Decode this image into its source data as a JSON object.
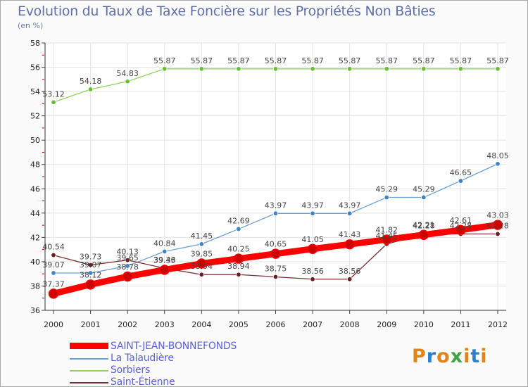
{
  "title": "Evolution du Taux de Taxe Foncière sur les Propriétés Non Bâties",
  "subtitle": "(en %)",
  "logo_text": "Proxiti",
  "colors": {
    "background": "#fbfbfb",
    "title": "#5f6fa8",
    "legend_text": "#5a62d8"
  },
  "chart_data": {
    "type": "line",
    "x": [
      "2000",
      "2001",
      "2002",
      "2003",
      "2004",
      "2005",
      "2006",
      "2007",
      "2008",
      "2009",
      "2010",
      "2011",
      "2012"
    ],
    "ylim": [
      36,
      58
    ],
    "yticks": [
      "36",
      "38",
      "40",
      "42",
      "44",
      "46",
      "48",
      "50",
      "52",
      "54",
      "56",
      "58"
    ],
    "grid": true,
    "legend_position": "bottom-left",
    "series": [
      {
        "name": "SAINT-JEAN-BONNEFONDS",
        "color": "#ff0000",
        "marker": "#cc0000",
        "values": [
          37.37,
          38.12,
          38.78,
          39.33,
          39.85,
          40.25,
          40.65,
          41.05,
          41.43,
          41.82,
          42.21,
          42.61,
          43.03
        ],
        "labels": [
          "37.37",
          "38.12",
          "38.78",
          "39.33",
          "39.85",
          "40.25",
          "40.65",
          "41.05",
          "41.43",
          "41.82",
          "42.21",
          "42.61",
          "43.03"
        ]
      },
      {
        "name": "La Talaudière",
        "color": "#6a9fd6",
        "marker": "#3f83c9",
        "values": [
          39.07,
          39.07,
          39.65,
          40.84,
          41.45,
          42.69,
          43.97,
          43.97,
          43.97,
          45.29,
          45.29,
          46.65,
          48.05
        ],
        "labels": [
          "39.07",
          "39.07",
          "39.65",
          "40.84",
          "41.45",
          "42.69",
          "43.97",
          "43.97",
          "43.97",
          "45.29",
          "45.29",
          "46.65",
          "48.05"
        ]
      },
      {
        "name": "Sorbiers",
        "color": "#8fd45a",
        "marker": "#6bbf3a",
        "values": [
          53.12,
          54.18,
          54.83,
          55.87,
          55.87,
          55.87,
          55.87,
          55.87,
          55.87,
          55.87,
          55.87,
          55.87,
          55.87
        ],
        "labels": [
          "53.12",
          "54.18",
          "54.83",
          "55.87",
          "55.87",
          "55.87",
          "55.87",
          "55.87",
          "55.87",
          "55.87",
          "55.87",
          "55.87",
          "55.87"
        ]
      },
      {
        "name": "Saint-Étienne",
        "color": "#7a2e33",
        "marker": "#6a1e24",
        "values": [
          40.54,
          39.73,
          40.13,
          39.46,
          38.94,
          38.94,
          38.75,
          38.56,
          38.56,
          41.45,
          42.28,
          42.28,
          42.28
        ],
        "labels": [
          "40.54",
          "39.73",
          "40.13",
          "39.46",
          "38.94",
          "38.94",
          "38.75",
          "38.56",
          "38.56",
          "41.45",
          "42.28",
          "42.28",
          "42.28"
        ]
      }
    ]
  }
}
